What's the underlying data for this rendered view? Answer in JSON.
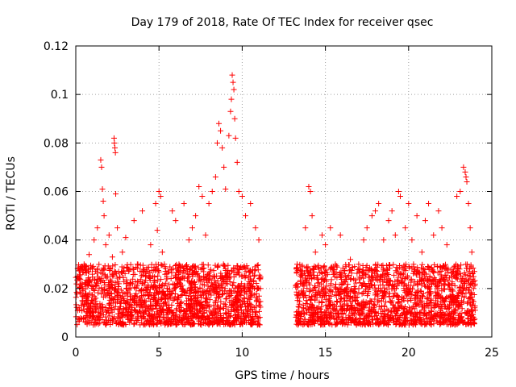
{
  "chart_data": {
    "type": "scatter",
    "title": "Day 179 of 2018, Rate Of TEC Index for receiver qsec",
    "xlabel": "GPS time / hours",
    "ylabel": "ROTI / TECUs",
    "xlim": [
      0,
      25
    ],
    "ylim": [
      0,
      0.12
    ],
    "xticks": [
      0,
      5,
      10,
      15,
      20,
      25
    ],
    "yticks": [
      0,
      0.02,
      0.04,
      0.06,
      0.08,
      0.1,
      0.12
    ],
    "xtick_labels": [
      "0",
      "5",
      "10",
      "15",
      "20",
      "25"
    ],
    "ytick_labels": [
      "0",
      "0.02",
      "0.04",
      "0.06",
      "0.08",
      "0.1",
      "0.12"
    ],
    "grid": true,
    "marker": "+",
    "color": "#ff0000",
    "series": [
      {
        "name": "ROTI",
        "points": [
          [
            0.1,
            0.025
          ],
          [
            0.2,
            0.012
          ],
          [
            0.3,
            0.018
          ],
          [
            0.4,
            0.02
          ],
          [
            0.5,
            0.03
          ],
          [
            0.6,
            0.015
          ],
          [
            0.7,
            0.022
          ],
          [
            0.8,
            0.034
          ],
          [
            0.9,
            0.01
          ],
          [
            1.0,
            0.028
          ],
          [
            1.1,
            0.04
          ],
          [
            1.2,
            0.016
          ],
          [
            1.3,
            0.045
          ],
          [
            1.4,
            0.02
          ],
          [
            1.5,
            0.073
          ],
          [
            1.55,
            0.07
          ],
          [
            1.6,
            0.061
          ],
          [
            1.65,
            0.056
          ],
          [
            1.7,
            0.05
          ],
          [
            1.8,
            0.038
          ],
          [
            1.9,
            0.025
          ],
          [
            2.0,
            0.042
          ],
          [
            2.1,
            0.018
          ],
          [
            2.2,
            0.033
          ],
          [
            2.3,
            0.082
          ],
          [
            2.32,
            0.08
          ],
          [
            2.35,
            0.078
          ],
          [
            2.38,
            0.076
          ],
          [
            2.4,
            0.059
          ],
          [
            2.5,
            0.045
          ],
          [
            2.6,
            0.022
          ],
          [
            2.8,
            0.035
          ],
          [
            3.0,
            0.041
          ],
          [
            3.2,
            0.02
          ],
          [
            3.5,
            0.048
          ],
          [
            3.7,
            0.03
          ],
          [
            4.0,
            0.052
          ],
          [
            4.2,
            0.025
          ],
          [
            4.5,
            0.038
          ],
          [
            4.8,
            0.055
          ],
          [
            4.9,
            0.044
          ],
          [
            5.0,
            0.06
          ],
          [
            5.1,
            0.058
          ],
          [
            5.2,
            0.035
          ],
          [
            5.5,
            0.02
          ],
          [
            5.8,
            0.052
          ],
          [
            6.0,
            0.048
          ],
          [
            6.2,
            0.03
          ],
          [
            6.5,
            0.055
          ],
          [
            6.8,
            0.04
          ],
          [
            7.0,
            0.045
          ],
          [
            7.2,
            0.05
          ],
          [
            7.4,
            0.062
          ],
          [
            7.6,
            0.058
          ],
          [
            7.8,
            0.042
          ],
          [
            8.0,
            0.055
          ],
          [
            8.2,
            0.06
          ],
          [
            8.4,
            0.066
          ],
          [
            8.5,
            0.08
          ],
          [
            8.6,
            0.088
          ],
          [
            8.7,
            0.085
          ],
          [
            8.8,
            0.078
          ],
          [
            8.9,
            0.07
          ],
          [
            9.0,
            0.061
          ],
          [
            9.2,
            0.083
          ],
          [
            9.3,
            0.093
          ],
          [
            9.35,
            0.098
          ],
          [
            9.4,
            0.108
          ],
          [
            9.45,
            0.105
          ],
          [
            9.5,
            0.102
          ],
          [
            9.55,
            0.09
          ],
          [
            9.6,
            0.082
          ],
          [
            9.7,
            0.072
          ],
          [
            9.8,
            0.06
          ],
          [
            10.0,
            0.058
          ],
          [
            10.2,
            0.05
          ],
          [
            10.5,
            0.055
          ],
          [
            10.8,
            0.045
          ],
          [
            11.0,
            0.04
          ],
          [
            11.1,
            0.02
          ],
          [
            13.3,
            0.03
          ],
          [
            13.5,
            0.025
          ],
          [
            13.8,
            0.045
          ],
          [
            14.0,
            0.062
          ],
          [
            14.1,
            0.06
          ],
          [
            14.2,
            0.05
          ],
          [
            14.4,
            0.035
          ],
          [
            14.6,
            0.028
          ],
          [
            14.8,
            0.042
          ],
          [
            15.0,
            0.038
          ],
          [
            15.3,
            0.045
          ],
          [
            15.6,
            0.03
          ],
          [
            15.9,
            0.042
          ],
          [
            16.2,
            0.025
          ],
          [
            16.5,
            0.032
          ],
          [
            16.8,
            0.02
          ],
          [
            17.0,
            0.03
          ],
          [
            17.3,
            0.04
          ],
          [
            17.5,
            0.045
          ],
          [
            17.8,
            0.05
          ],
          [
            18.0,
            0.052
          ],
          [
            18.2,
            0.055
          ],
          [
            18.5,
            0.04
          ],
          [
            18.8,
            0.048
          ],
          [
            19.0,
            0.052
          ],
          [
            19.2,
            0.042
          ],
          [
            19.4,
            0.06
          ],
          [
            19.5,
            0.058
          ],
          [
            19.8,
            0.045
          ],
          [
            20.0,
            0.055
          ],
          [
            20.2,
            0.04
          ],
          [
            20.5,
            0.05
          ],
          [
            20.8,
            0.035
          ],
          [
            21.0,
            0.048
          ],
          [
            21.2,
            0.055
          ],
          [
            21.5,
            0.042
          ],
          [
            21.8,
            0.052
          ],
          [
            22.0,
            0.045
          ],
          [
            22.3,
            0.038
          ],
          [
            22.6,
            0.025
          ],
          [
            22.9,
            0.058
          ],
          [
            23.1,
            0.06
          ],
          [
            23.3,
            0.07
          ],
          [
            23.4,
            0.068
          ],
          [
            23.45,
            0.066
          ],
          [
            23.5,
            0.064
          ],
          [
            23.6,
            0.055
          ],
          [
            23.7,
            0.045
          ],
          [
            23.8,
            0.035
          ],
          [
            23.9,
            0.02
          ]
        ],
        "bulk_segments": [
          {
            "x_start": 0.0,
            "x_end": 11.1,
            "y_min": 0.005,
            "y_max": 0.03,
            "note": "dense band"
          },
          {
            "x_start": 13.2,
            "x_end": 24.0,
            "y_min": 0.005,
            "y_max": 0.03,
            "note": "dense band"
          }
        ]
      }
    ]
  }
}
